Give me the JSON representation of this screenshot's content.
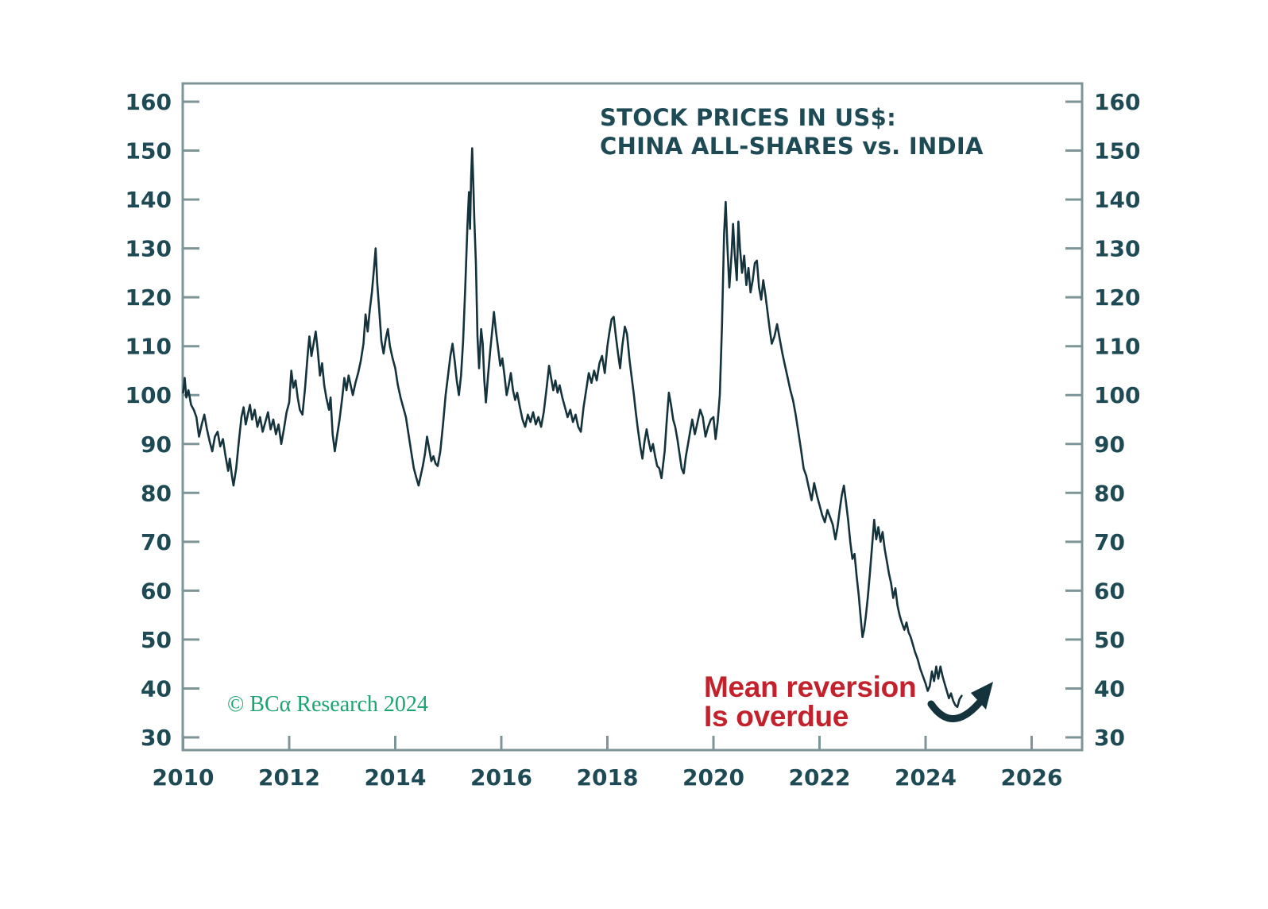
{
  "figure": {
    "title_line1": "STOCK PRICES IN US$:",
    "title_line2": "CHINA ALL-SHARES vs. INDIA",
    "annotation": {
      "line1": "Mean reversion",
      "line2": "Is overdue",
      "color": "#c3222c"
    },
    "credit": {
      "text": "© BCα Research 2024",
      "color": "#1da470"
    },
    "colors": {
      "line": "#14333d",
      "text": "#1d4a54",
      "axis": "#7e9598",
      "background": "#ffffff"
    }
  },
  "chart_data": {
    "type": "line",
    "title": "STOCK PRICES IN US$: CHINA ALL-SHARES vs. INDIA",
    "xlabel": "",
    "ylabel": "",
    "grid": false,
    "legend": "none",
    "xlim": [
      2009.95,
      2026.95
    ],
    "ylim": [
      27.5,
      164.2
    ],
    "x_ticks": [
      2010,
      2012,
      2014,
      2016,
      2018,
      2020,
      2022,
      2024,
      2026
    ],
    "y_ticks": [
      160,
      150,
      140,
      130,
      120,
      110,
      100,
      90,
      80,
      70,
      60,
      50,
      40,
      30
    ],
    "y_ticks_both_sides": true,
    "points": [
      [
        2010.0,
        100.5
      ],
      [
        2010.03,
        103.5
      ],
      [
        2010.06,
        99.5
      ],
      [
        2010.1,
        101.0
      ],
      [
        2010.15,
        98.0
      ],
      [
        2010.2,
        97.0
      ],
      [
        2010.25,
        95.5
      ],
      [
        2010.3,
        91.5
      ],
      [
        2010.35,
        94.0
      ],
      [
        2010.4,
        96.0
      ],
      [
        2010.45,
        93.0
      ],
      [
        2010.5,
        90.5
      ],
      [
        2010.55,
        88.5
      ],
      [
        2010.6,
        91.5
      ],
      [
        2010.65,
        92.5
      ],
      [
        2010.7,
        89.5
      ],
      [
        2010.75,
        91.0
      ],
      [
        2010.8,
        87.5
      ],
      [
        2010.85,
        84.5
      ],
      [
        2010.88,
        87.0
      ],
      [
        2010.92,
        83.5
      ],
      [
        2010.95,
        81.5
      ],
      [
        2011.0,
        85.0
      ],
      [
        2011.05,
        90.5
      ],
      [
        2011.1,
        95.5
      ],
      [
        2011.14,
        97.5
      ],
      [
        2011.18,
        94.0
      ],
      [
        2011.22,
        96.0
      ],
      [
        2011.26,
        98.0
      ],
      [
        2011.3,
        95.0
      ],
      [
        2011.35,
        97.0
      ],
      [
        2011.4,
        93.5
      ],
      [
        2011.45,
        95.5
      ],
      [
        2011.5,
        92.5
      ],
      [
        2011.55,
        94.5
      ],
      [
        2011.6,
        96.5
      ],
      [
        2011.65,
        93.0
      ],
      [
        2011.7,
        95.0
      ],
      [
        2011.75,
        92.0
      ],
      [
        2011.8,
        94.0
      ],
      [
        2011.85,
        90.0
      ],
      [
        2011.9,
        93.0
      ],
      [
        2011.95,
        96.5
      ],
      [
        2012.0,
        98.5
      ],
      [
        2012.04,
        105.0
      ],
      [
        2012.08,
        101.5
      ],
      [
        2012.12,
        103.0
      ],
      [
        2012.16,
        99.5
      ],
      [
        2012.2,
        97.0
      ],
      [
        2012.25,
        96.0
      ],
      [
        2012.3,
        101.5
      ],
      [
        2012.35,
        108.5
      ],
      [
        2012.38,
        112.0
      ],
      [
        2012.42,
        108.0
      ],
      [
        2012.46,
        110.5
      ],
      [
        2012.5,
        113.0
      ],
      [
        2012.54,
        109.0
      ],
      [
        2012.58,
        104.0
      ],
      [
        2012.62,
        106.5
      ],
      [
        2012.66,
        102.0
      ],
      [
        2012.7,
        99.5
      ],
      [
        2012.75,
        97.0
      ],
      [
        2012.78,
        99.5
      ],
      [
        2012.82,
        92.0
      ],
      [
        2012.86,
        88.5
      ],
      [
        2012.9,
        91.5
      ],
      [
        2012.95,
        95.0
      ],
      [
        2013.0,
        99.5
      ],
      [
        2013.04,
        103.5
      ],
      [
        2013.08,
        101.0
      ],
      [
        2013.12,
        104.0
      ],
      [
        2013.16,
        102.0
      ],
      [
        2013.2,
        100.0
      ],
      [
        2013.25,
        102.5
      ],
      [
        2013.3,
        104.5
      ],
      [
        2013.35,
        107.0
      ],
      [
        2013.4,
        110.5
      ],
      [
        2013.44,
        116.5
      ],
      [
        2013.48,
        113.0
      ],
      [
        2013.52,
        117.5
      ],
      [
        2013.56,
        121.0
      ],
      [
        2013.6,
        126.0
      ],
      [
        2013.63,
        130.0
      ],
      [
        2013.66,
        123.0
      ],
      [
        2013.7,
        117.0
      ],
      [
        2013.74,
        111.0
      ],
      [
        2013.78,
        108.5
      ],
      [
        2013.82,
        111.5
      ],
      [
        2013.86,
        113.5
      ],
      [
        2013.9,
        110.0
      ],
      [
        2013.95,
        107.5
      ],
      [
        2014.0,
        105.5
      ],
      [
        2014.05,
        102.0
      ],
      [
        2014.1,
        99.5
      ],
      [
        2014.15,
        97.5
      ],
      [
        2014.2,
        95.5
      ],
      [
        2014.25,
        92.0
      ],
      [
        2014.3,
        88.5
      ],
      [
        2014.35,
        85.0
      ],
      [
        2014.4,
        83.0
      ],
      [
        2014.44,
        81.5
      ],
      [
        2014.48,
        83.5
      ],
      [
        2014.52,
        85.5
      ],
      [
        2014.56,
        88.0
      ],
      [
        2014.6,
        91.5
      ],
      [
        2014.64,
        89.0
      ],
      [
        2014.68,
        86.5
      ],
      [
        2014.72,
        87.5
      ],
      [
        2014.76,
        86.0
      ],
      [
        2014.8,
        85.5
      ],
      [
        2014.85,
        88.5
      ],
      [
        2014.9,
        94.0
      ],
      [
        2014.95,
        100.0
      ],
      [
        2015.0,
        104.5
      ],
      [
        2015.04,
        108.0
      ],
      [
        2015.08,
        110.5
      ],
      [
        2015.12,
        107.0
      ],
      [
        2015.16,
        103.0
      ],
      [
        2015.2,
        100.0
      ],
      [
        2015.24,
        104.0
      ],
      [
        2015.28,
        111.0
      ],
      [
        2015.32,
        122.0
      ],
      [
        2015.36,
        134.5
      ],
      [
        2015.39,
        141.5
      ],
      [
        2015.41,
        134.0
      ],
      [
        2015.43,
        144.5
      ],
      [
        2015.45,
        150.5
      ],
      [
        2015.47,
        144.0
      ],
      [
        2015.49,
        136.0
      ],
      [
        2015.52,
        127.0
      ],
      [
        2015.55,
        112.0
      ],
      [
        2015.58,
        105.5
      ],
      [
        2015.62,
        113.5
      ],
      [
        2015.65,
        110.5
      ],
      [
        2015.68,
        103.0
      ],
      [
        2015.71,
        98.5
      ],
      [
        2015.75,
        104.0
      ],
      [
        2015.79,
        109.0
      ],
      [
        2015.83,
        113.5
      ],
      [
        2015.86,
        117.0
      ],
      [
        2015.9,
        113.0
      ],
      [
        2015.94,
        109.5
      ],
      [
        2015.98,
        106.0
      ],
      [
        2016.02,
        107.5
      ],
      [
        2016.06,
        104.0
      ],
      [
        2016.1,
        100.0
      ],
      [
        2016.14,
        102.0
      ],
      [
        2016.18,
        104.5
      ],
      [
        2016.22,
        101.0
      ],
      [
        2016.26,
        99.0
      ],
      [
        2016.3,
        100.5
      ],
      [
        2016.35,
        97.5
      ],
      [
        2016.4,
        95.0
      ],
      [
        2016.45,
        93.5
      ],
      [
        2016.5,
        96.0
      ],
      [
        2016.55,
        94.5
      ],
      [
        2016.6,
        96.5
      ],
      [
        2016.65,
        94.0
      ],
      [
        2016.7,
        95.5
      ],
      [
        2016.75,
        93.5
      ],
      [
        2016.8,
        96.5
      ],
      [
        2016.85,
        101.0
      ],
      [
        2016.9,
        106.0
      ],
      [
        2016.94,
        103.5
      ],
      [
        2016.98,
        101.0
      ],
      [
        2017.02,
        103.0
      ],
      [
        2017.06,
        100.5
      ],
      [
        2017.1,
        102.0
      ],
      [
        2017.15,
        99.5
      ],
      [
        2017.2,
        97.5
      ],
      [
        2017.25,
        95.5
      ],
      [
        2017.3,
        97.0
      ],
      [
        2017.35,
        94.5
      ],
      [
        2017.4,
        96.0
      ],
      [
        2017.45,
        93.5
      ],
      [
        2017.5,
        92.5
      ],
      [
        2017.55,
        97.5
      ],
      [
        2017.6,
        101.0
      ],
      [
        2017.65,
        104.5
      ],
      [
        2017.7,
        102.5
      ],
      [
        2017.75,
        105.0
      ],
      [
        2017.8,
        103.0
      ],
      [
        2017.85,
        106.5
      ],
      [
        2017.9,
        108.0
      ],
      [
        2017.95,
        104.5
      ],
      [
        2018.0,
        110.0
      ],
      [
        2018.04,
        113.0
      ],
      [
        2018.08,
        115.5
      ],
      [
        2018.12,
        116.0
      ],
      [
        2018.16,
        112.0
      ],
      [
        2018.2,
        108.5
      ],
      [
        2018.24,
        105.5
      ],
      [
        2018.28,
        110.0
      ],
      [
        2018.33,
        114.0
      ],
      [
        2018.37,
        112.5
      ],
      [
        2018.42,
        107.0
      ],
      [
        2018.46,
        103.5
      ],
      [
        2018.5,
        100.0
      ],
      [
        2018.53,
        97.0
      ],
      [
        2018.57,
        93.5
      ],
      [
        2018.62,
        89.5
      ],
      [
        2018.66,
        87.0
      ],
      [
        2018.7,
        90.5
      ],
      [
        2018.74,
        93.0
      ],
      [
        2018.78,
        90.5
      ],
      [
        2018.82,
        88.5
      ],
      [
        2018.86,
        90.0
      ],
      [
        2018.9,
        87.5
      ],
      [
        2018.94,
        85.5
      ],
      [
        2018.98,
        85.0
      ],
      [
        2019.02,
        83.0
      ],
      [
        2019.08,
        88.5
      ],
      [
        2019.12,
        95.0
      ],
      [
        2019.16,
        100.5
      ],
      [
        2019.2,
        98.0
      ],
      [
        2019.24,
        95.0
      ],
      [
        2019.28,
        93.5
      ],
      [
        2019.32,
        91.0
      ],
      [
        2019.36,
        88.0
      ],
      [
        2019.4,
        85.0
      ],
      [
        2019.44,
        84.0
      ],
      [
        2019.48,
        87.5
      ],
      [
        2019.52,
        90.0
      ],
      [
        2019.56,
        92.5
      ],
      [
        2019.6,
        95.0
      ],
      [
        2019.65,
        92.0
      ],
      [
        2019.7,
        94.5
      ],
      [
        2019.75,
        97.0
      ],
      [
        2019.8,
        95.5
      ],
      [
        2019.85,
        91.5
      ],
      [
        2019.9,
        93.5
      ],
      [
        2019.95,
        95.0
      ],
      [
        2020.0,
        95.5
      ],
      [
        2020.04,
        91.0
      ],
      [
        2020.08,
        94.5
      ],
      [
        2020.12,
        100.0
      ],
      [
        2020.16,
        114.0
      ],
      [
        2020.2,
        133.0
      ],
      [
        2020.23,
        139.5
      ],
      [
        2020.26,
        131.0
      ],
      [
        2020.3,
        122.0
      ],
      [
        2020.34,
        128.5
      ],
      [
        2020.37,
        135.0
      ],
      [
        2020.4,
        129.0
      ],
      [
        2020.44,
        123.5
      ],
      [
        2020.47,
        135.5
      ],
      [
        2020.5,
        130.0
      ],
      [
        2020.54,
        125.0
      ],
      [
        2020.58,
        128.5
      ],
      [
        2020.62,
        122.5
      ],
      [
        2020.66,
        126.0
      ],
      [
        2020.7,
        121.0
      ],
      [
        2020.74,
        123.5
      ],
      [
        2020.78,
        127.0
      ],
      [
        2020.82,
        127.5
      ],
      [
        2020.86,
        122.0
      ],
      [
        2020.9,
        119.5
      ],
      [
        2020.94,
        123.5
      ],
      [
        2020.98,
        120.5
      ],
      [
        2021.02,
        117.0
      ],
      [
        2021.06,
        113.5
      ],
      [
        2021.1,
        110.5
      ],
      [
        2021.15,
        112.0
      ],
      [
        2021.2,
        114.5
      ],
      [
        2021.25,
        111.5
      ],
      [
        2021.3,
        108.5
      ],
      [
        2021.35,
        106.0
      ],
      [
        2021.4,
        103.5
      ],
      [
        2021.45,
        101.0
      ],
      [
        2021.5,
        99.0
      ],
      [
        2021.55,
        96.0
      ],
      [
        2021.6,
        92.5
      ],
      [
        2021.65,
        89.0
      ],
      [
        2021.7,
        85.0
      ],
      [
        2021.75,
        83.5
      ],
      [
        2021.8,
        81.0
      ],
      [
        2021.85,
        78.5
      ],
      [
        2021.9,
        82.0
      ],
      [
        2021.95,
        79.5
      ],
      [
        2022.0,
        77.5
      ],
      [
        2022.05,
        75.5
      ],
      [
        2022.1,
        74.0
      ],
      [
        2022.15,
        76.5
      ],
      [
        2022.2,
        75.0
      ],
      [
        2022.25,
        73.5
      ],
      [
        2022.3,
        70.5
      ],
      [
        2022.34,
        73.0
      ],
      [
        2022.38,
        76.5
      ],
      [
        2022.42,
        79.5
      ],
      [
        2022.46,
        81.5
      ],
      [
        2022.5,
        78.0
      ],
      [
        2022.54,
        74.5
      ],
      [
        2022.58,
        70.0
      ],
      [
        2022.62,
        66.5
      ],
      [
        2022.66,
        67.5
      ],
      [
        2022.7,
        63.0
      ],
      [
        2022.74,
        59.0
      ],
      [
        2022.78,
        54.0
      ],
      [
        2022.81,
        50.5
      ],
      [
        2022.84,
        52.0
      ],
      [
        2022.87,
        54.5
      ],
      [
        2022.91,
        58.5
      ],
      [
        2022.95,
        63.5
      ],
      [
        2022.99,
        69.0
      ],
      [
        2023.03,
        74.5
      ],
      [
        2023.07,
        70.5
      ],
      [
        2023.11,
        73.0
      ],
      [
        2023.15,
        70.0
      ],
      [
        2023.19,
        72.0
      ],
      [
        2023.23,
        68.5
      ],
      [
        2023.27,
        66.0
      ],
      [
        2023.31,
        63.5
      ],
      [
        2023.35,
        61.5
      ],
      [
        2023.39,
        58.5
      ],
      [
        2023.43,
        60.5
      ],
      [
        2023.47,
        57.0
      ],
      [
        2023.51,
        55.0
      ],
      [
        2023.55,
        53.5
      ],
      [
        2023.6,
        52.0
      ],
      [
        2023.64,
        53.5
      ],
      [
        2023.68,
        51.5
      ],
      [
        2023.72,
        50.5
      ],
      [
        2023.76,
        49.0
      ],
      [
        2023.8,
        47.5
      ],
      [
        2023.85,
        46.0
      ],
      [
        2023.9,
        44.0
      ],
      [
        2023.95,
        42.5
      ],
      [
        2024.0,
        41.0
      ],
      [
        2024.04,
        39.5
      ],
      [
        2024.08,
        40.5
      ],
      [
        2024.12,
        43.5
      ],
      [
        2024.16,
        41.5
      ],
      [
        2024.2,
        44.5
      ],
      [
        2024.24,
        42.0
      ],
      [
        2024.28,
        44.5
      ],
      [
        2024.32,
        42.5
      ],
      [
        2024.36,
        41.0
      ],
      [
        2024.4,
        39.5
      ],
      [
        2024.44,
        38.0
      ],
      [
        2024.48,
        39.0
      ],
      [
        2024.52,
        37.5
      ],
      [
        2024.56,
        36.6
      ],
      [
        2024.6,
        36.2
      ],
      [
        2024.64,
        37.8
      ],
      [
        2024.68,
        38.5
      ]
    ]
  }
}
